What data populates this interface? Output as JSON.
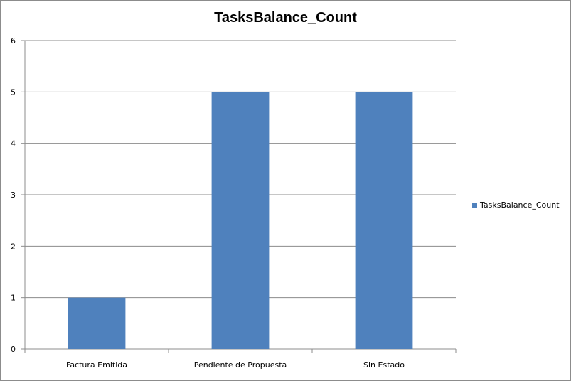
{
  "chart_data": {
    "type": "bar",
    "title": "TasksBalance_Count",
    "categories": [
      "Factura Emitida",
      "Pendiente de Propuesta",
      "Sin Estado"
    ],
    "series": [
      {
        "name": "TasksBalance_Count",
        "values": [
          1,
          5,
          5
        ],
        "color": "#4f81bd"
      }
    ],
    "ylim": [
      0,
      6
    ],
    "yticks": [
      "0",
      "1",
      "2",
      "3",
      "4",
      "5",
      "6"
    ],
    "grid": true,
    "legend_position": "right"
  }
}
